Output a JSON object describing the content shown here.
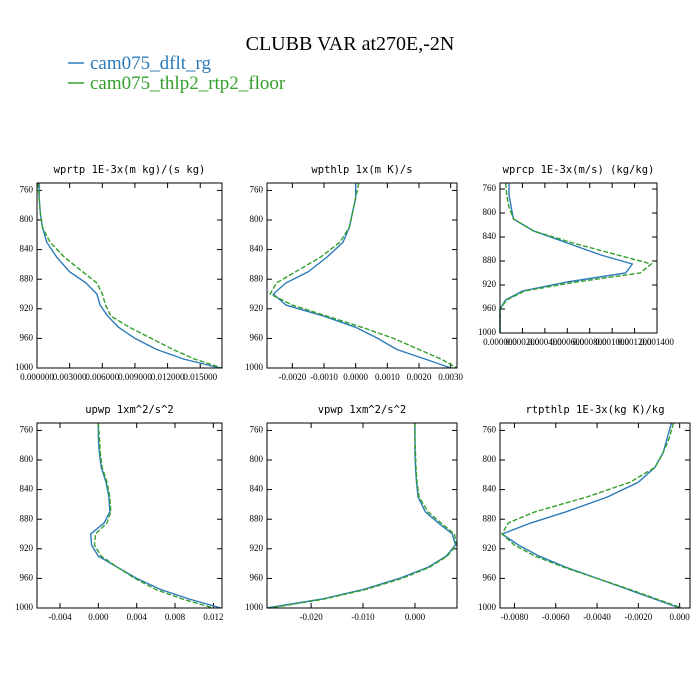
{
  "title": "CLUBB VAR at270E,-2N",
  "chart_data": [
    {
      "type": "line",
      "title": "wprtp  1E-3x(m kg)/(s kg)",
      "orientation": "profile",
      "levels": [
        750,
        770,
        790,
        810,
        830,
        850,
        870,
        885,
        900,
        915,
        930,
        945,
        960,
        975,
        988,
        1000
      ],
      "xlim": [
        0,
        0.017
      ],
      "ylim": [
        1000,
        750
      ],
      "xticks": [
        {
          "value": 0,
          "label": "0.000000"
        },
        {
          "value": 0.003,
          "label": "0.003000"
        },
        {
          "value": 0.006,
          "label": "0.006000"
        },
        {
          "value": 0.009,
          "label": "0.009000"
        },
        {
          "value": 0.012,
          "label": "0.012000"
        },
        {
          "value": 0.015,
          "label": "0.015000"
        }
      ],
      "yticks": [
        760,
        800,
        840,
        880,
        920,
        960,
        1000
      ],
      "series": [
        {
          "name": "cam075_dflt_rg",
          "color": "#2b7bba",
          "line_style": "solid",
          "values": [
            0.0002,
            0.0002,
            0.0003,
            0.0005,
            0.0009,
            0.0018,
            0.003,
            0.0045,
            0.0055,
            0.0058,
            0.0065,
            0.0075,
            0.009,
            0.011,
            0.0135,
            0.0168
          ]
        },
        {
          "name": "cam075_thlp2_rtp2_floor",
          "color": "#33a02c",
          "line_style": "dashed",
          "values": [
            0.0001,
            0.0002,
            0.0003,
            0.0005,
            0.0012,
            0.0025,
            0.0042,
            0.0055,
            0.006,
            0.0063,
            0.0068,
            0.0085,
            0.0105,
            0.0125,
            0.0145,
            0.017
          ]
        }
      ]
    },
    {
      "type": "line",
      "title": "wpthlp  1x(m K)/s",
      "orientation": "profile",
      "levels": [
        750,
        770,
        790,
        810,
        830,
        850,
        870,
        885,
        900,
        915,
        930,
        945,
        960,
        975,
        988,
        1000
      ],
      "xlim": [
        -0.0028,
        0.0032
      ],
      "ylim": [
        1000,
        750
      ],
      "xticks": [
        {
          "value": -0.002,
          "label": "-0.0020"
        },
        {
          "value": -0.001,
          "label": "-0.0010"
        },
        {
          "value": 0,
          "label": "0.0000"
        },
        {
          "value": 0.001,
          "label": "0.0010"
        },
        {
          "value": 0.002,
          "label": "0.0020"
        },
        {
          "value": 0.003,
          "label": "0.0030"
        }
      ],
      "yticks": [
        760,
        800,
        840,
        880,
        920,
        960,
        1000
      ],
      "series": [
        {
          "name": "cam075_dflt_rg",
          "color": "#2b7bba",
          "line_style": "solid",
          "values": [
            0.0,
            0.0,
            -0.0001,
            -0.0002,
            -0.0004,
            -0.0009,
            -0.0015,
            -0.0022,
            -0.0026,
            -0.0022,
            -0.001,
            0.0,
            0.0007,
            0.0013,
            0.0022,
            0.003
          ]
        },
        {
          "name": "cam075_thlp2_rtp2_floor",
          "color": "#33a02c",
          "line_style": "dashed",
          "values": [
            0.0001,
            0.0,
            -0.0001,
            -0.0002,
            -0.0005,
            -0.0011,
            -0.0019,
            -0.0025,
            -0.0027,
            -0.002,
            -0.0009,
            0.0002,
            0.0012,
            0.002,
            0.0027,
            0.0032
          ]
        }
      ]
    },
    {
      "type": "line",
      "title": "wprcp  1E-3x(m/s) (kg/kg)",
      "orientation": "profile",
      "levels": [
        750,
        770,
        790,
        810,
        830,
        850,
        870,
        885,
        900,
        915,
        930,
        945,
        960,
        975,
        988,
        1000
      ],
      "xlim": [
        0,
        0.0014
      ],
      "ylim": [
        1000,
        750
      ],
      "xticks": [
        {
          "value": 0,
          "label": "0.000000"
        },
        {
          "value": 0.0002,
          "label": "0.000200"
        },
        {
          "value": 0.0004,
          "label": "0.000400"
        },
        {
          "value": 0.0006,
          "label": "0.000600"
        },
        {
          "value": 0.0008,
          "label": "0.000800"
        },
        {
          "value": 0.001,
          "label": "0.001000"
        },
        {
          "value": 0.0012,
          "label": "0.001200"
        },
        {
          "value": 0.0014,
          "label": "0.001400"
        }
      ],
      "yticks": [
        760,
        800,
        840,
        880,
        920,
        960,
        1000
      ],
      "series": [
        {
          "name": "cam075_dflt_rg",
          "color": "#2b7bba",
          "line_style": "solid",
          "values": [
            8e-05,
            8e-05,
            0.0001,
            0.00012,
            0.0003,
            0.0006,
            0.0009,
            0.00118,
            0.00112,
            0.0006,
            0.0002,
            5e-05,
            0,
            0,
            0,
            0
          ]
        },
        {
          "name": "cam075_thlp2_rtp2_floor",
          "color": "#33a02c",
          "line_style": "dashed",
          "values": [
            5e-05,
            6e-05,
            8e-05,
            0.00012,
            0.0003,
            0.00065,
            0.00105,
            0.00135,
            0.00125,
            0.00068,
            0.00022,
            6e-05,
            0,
            0,
            0,
            0
          ]
        }
      ]
    },
    {
      "type": "line",
      "title": "upwp  1xm^2/s^2",
      "orientation": "profile",
      "levels": [
        750,
        770,
        790,
        810,
        830,
        850,
        870,
        885,
        900,
        915,
        930,
        945,
        960,
        975,
        988,
        1000
      ],
      "xlim": [
        -0.0064,
        0.0129
      ],
      "ylim": [
        1000,
        750
      ],
      "xticks": [
        {
          "value": -0.004,
          "label": "-0.004"
        },
        {
          "value": 0,
          "label": "0.000"
        },
        {
          "value": 0.004,
          "label": "0.004"
        },
        {
          "value": 0.008,
          "label": "0.008"
        },
        {
          "value": 0.012,
          "label": "0.012"
        }
      ],
      "yticks": [
        760,
        800,
        840,
        880,
        920,
        960,
        1000
      ],
      "series": [
        {
          "name": "cam075_dflt_rg",
          "color": "#2b7bba",
          "line_style": "solid",
          "values": [
            0.0,
            0.0,
            0.0001,
            0.0003,
            0.0008,
            0.0011,
            0.0012,
            0.0006,
            -0.0008,
            -0.0007,
            0.0,
            0.002,
            0.004,
            0.0065,
            0.0095,
            0.0128
          ]
        },
        {
          "name": "cam075_thlp2_rtp2_floor",
          "color": "#33a02c",
          "line_style": "dashed",
          "values": [
            0.0,
            0.0001,
            0.0002,
            0.0004,
            0.0009,
            0.0012,
            0.0013,
            0.0009,
            -0.0003,
            -0.0004,
            0.0003,
            0.002,
            0.0038,
            0.006,
            0.0088,
            0.012
          ]
        }
      ]
    },
    {
      "type": "line",
      "title": "vpwp  1xm^2/s^2",
      "orientation": "profile",
      "levels": [
        750,
        770,
        790,
        810,
        830,
        850,
        870,
        885,
        900,
        915,
        930,
        945,
        960,
        975,
        988,
        1000
      ],
      "xlim": [
        -0.0285,
        0.0081
      ],
      "ylim": [
        1000,
        750
      ],
      "xticks": [
        {
          "value": -0.02,
          "label": "-0.020"
        },
        {
          "value": -0.01,
          "label": "-0.010"
        },
        {
          "value": 0,
          "label": "0.000"
        }
      ],
      "yticks": [
        760,
        800,
        840,
        880,
        920,
        960,
        1000
      ],
      "series": [
        {
          "name": "cam075_dflt_rg",
          "color": "#2b7bba",
          "line_style": "solid",
          "values": [
            0.0,
            0.0,
            0.0,
            0.0001,
            0.0003,
            0.0006,
            0.002,
            0.0045,
            0.0072,
            0.0078,
            0.006,
            0.0025,
            -0.003,
            -0.01,
            -0.018,
            -0.0285
          ]
        },
        {
          "name": "cam075_thlp2_rtp2_floor",
          "color": "#33a02c",
          "line_style": "dashed",
          "values": [
            0.0,
            0.0,
            0.0001,
            0.0002,
            0.0004,
            0.0008,
            0.0025,
            0.005,
            0.0076,
            0.008,
            0.0062,
            0.0028,
            -0.0025,
            -0.0095,
            -0.0175,
            -0.028
          ]
        }
      ]
    },
    {
      "type": "line",
      "title": "rtpthlp  1E-3x(kg K)/kg",
      "orientation": "profile",
      "levels": [
        750,
        770,
        790,
        810,
        830,
        850,
        870,
        885,
        900,
        915,
        930,
        945,
        960,
        975,
        988,
        1000
      ],
      "xlim": [
        -0.0087,
        0.0005
      ],
      "ylim": [
        1000,
        750
      ],
      "xticks": [
        {
          "value": -0.008,
          "label": "-0.0080"
        },
        {
          "value": -0.006,
          "label": "-0.0060"
        },
        {
          "value": -0.004,
          "label": "-0.0040"
        },
        {
          "value": -0.002,
          "label": "-0.0020"
        },
        {
          "value": 0,
          "label": "0.000"
        }
      ],
      "yticks": [
        760,
        800,
        840,
        880,
        920,
        960,
        1000
      ],
      "series": [
        {
          "name": "cam075_dflt_rg",
          "color": "#2b7bba",
          "line_style": "solid",
          "values": [
            -0.0004,
            -0.0006,
            -0.0008,
            -0.0012,
            -0.002,
            -0.0035,
            -0.0055,
            -0.0072,
            -0.0086,
            -0.0078,
            -0.0068,
            -0.0055,
            -0.004,
            -0.0025,
            -0.0012,
            0.0
          ]
        },
        {
          "name": "cam075_thlp2_rtp2_floor",
          "color": "#33a02c",
          "line_style": "dashed",
          "values": [
            -0.0003,
            -0.0005,
            -0.0008,
            -0.0012,
            -0.0024,
            -0.0045,
            -0.007,
            -0.0083,
            -0.0086,
            -0.008,
            -0.007,
            -0.0056,
            -0.004,
            -0.0024,
            -0.0011,
            0.0001
          ]
        }
      ]
    }
  ]
}
